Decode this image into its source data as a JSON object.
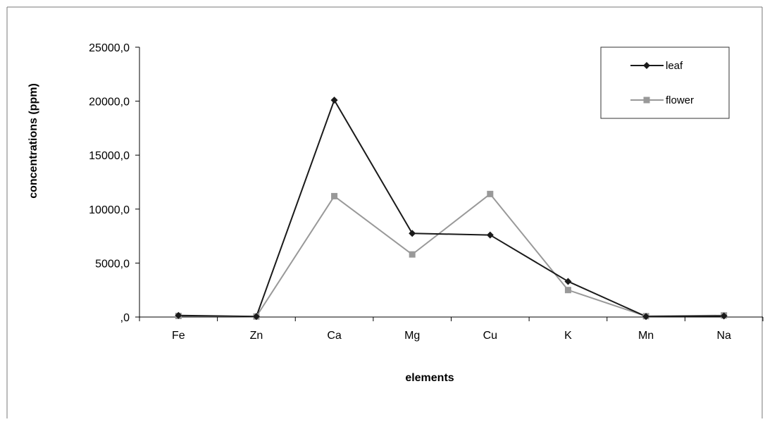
{
  "chart_data": {
    "type": "line",
    "title": "",
    "xlabel": "elements",
    "ylabel": "concentrations (ppm)",
    "categories": [
      "Fe",
      "Zn",
      "Ca",
      "Mg",
      "Cu",
      "K",
      "Mn",
      "Na"
    ],
    "ylim": [
      0,
      25000
    ],
    "yticks": [
      0,
      5000,
      10000,
      15000,
      20000,
      25000
    ],
    "ytick_labels": [
      ",0",
      "5000,0",
      "10000,0",
      "15000,0",
      "20000,0",
      "25000,0"
    ],
    "grid": false,
    "legend_position": "top-right",
    "series": [
      {
        "name": "leaf",
        "color": "#1a1a1a",
        "marker": "diamond",
        "values": [
          150,
          50,
          20100,
          7750,
          7600,
          3300,
          50,
          100
        ]
      },
      {
        "name": "flower",
        "color": "#999999",
        "marker": "square",
        "values": [
          100,
          50,
          11200,
          5800,
          11400,
          2500,
          80,
          150
        ]
      }
    ]
  }
}
